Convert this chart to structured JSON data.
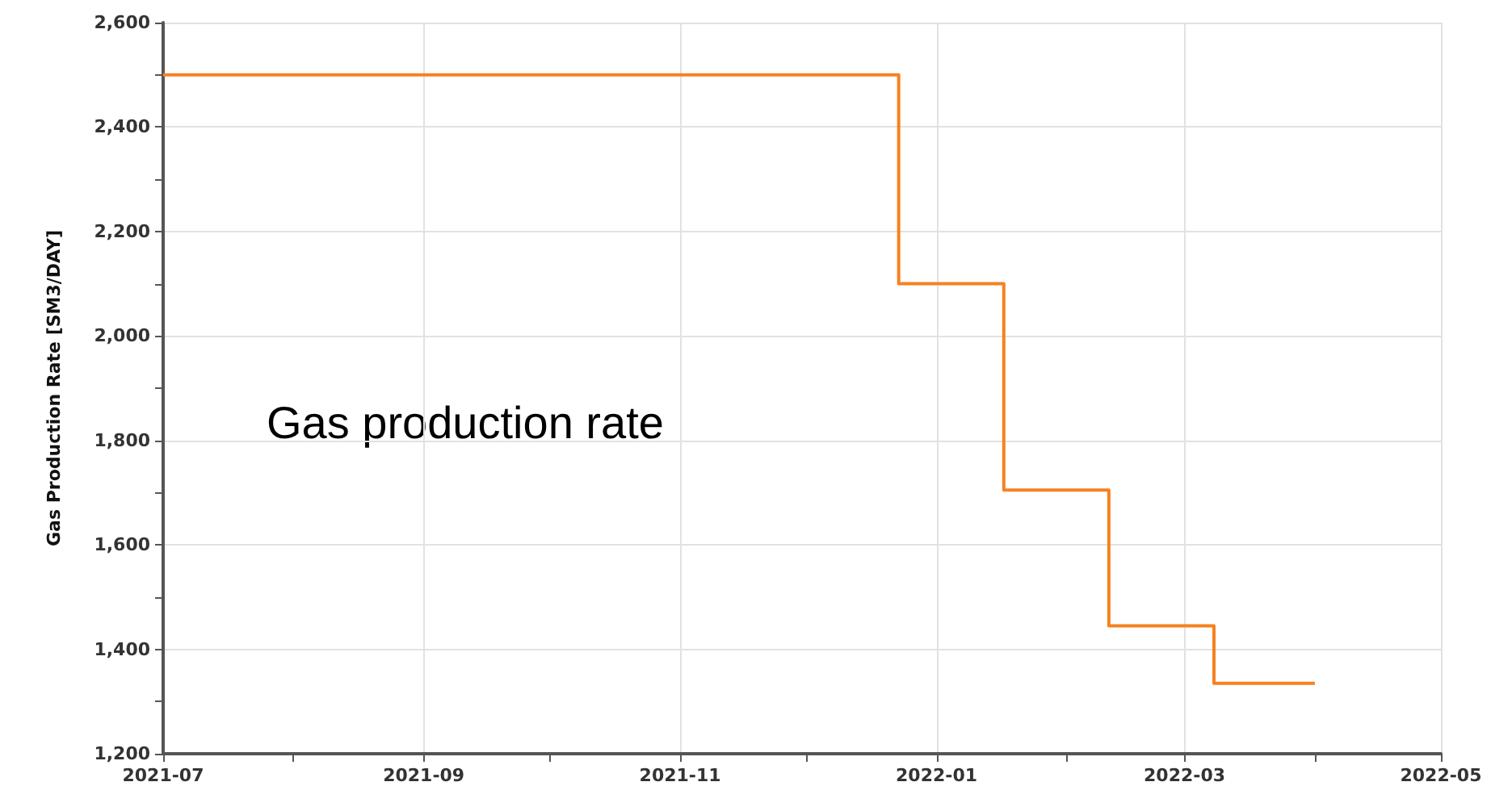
{
  "chart_data": {
    "type": "step",
    "ylabel": "Gas Production Rate [SM3/DAY]",
    "x": [
      "2021-07-01",
      "2021-12-23",
      "2022-01-17",
      "2022-02-11",
      "2022-03-08",
      "2022-04-01"
    ],
    "series": [
      {
        "color": "#f58220",
        "values": [
          2500,
          2100,
          1705,
          1445,
          1335,
          1335
        ]
      }
    ],
    "xlim": [
      "2021-07-01",
      "2022-05-01"
    ],
    "xticks": [
      {
        "value": "2021-07-01",
        "label": "2021-07"
      },
      {
        "value": "2021-08-01",
        "label": null
      },
      {
        "value": "2021-09-01",
        "label": "2021-09"
      },
      {
        "value": "2021-10-01",
        "label": null
      },
      {
        "value": "2021-11-01",
        "label": "2021-11"
      },
      {
        "value": "2021-12-01",
        "label": null
      },
      {
        "value": "2022-01-01",
        "label": "2022-01"
      },
      {
        "value": "2022-02-01",
        "label": null
      },
      {
        "value": "2022-03-01",
        "label": "2022-03"
      },
      {
        "value": "2022-04-01",
        "label": null
      },
      {
        "value": "2022-05-01",
        "label": "2022-05"
      }
    ],
    "ylim": [
      1200,
      2600
    ],
    "yticks": [
      {
        "value": 1200,
        "label": "1,200"
      },
      {
        "value": 1300,
        "label": null
      },
      {
        "value": 1400,
        "label": "1,400"
      },
      {
        "value": 1500,
        "label": null
      },
      {
        "value": 1600,
        "label": "1,600"
      },
      {
        "value": 1700,
        "label": null
      },
      {
        "value": 1800,
        "label": "1,800"
      },
      {
        "value": 1900,
        "label": null
      },
      {
        "value": 2000,
        "label": "2,000"
      },
      {
        "value": 2100,
        "label": null
      },
      {
        "value": 2200,
        "label": "2,200"
      },
      {
        "value": 2300,
        "label": null
      },
      {
        "value": 2400,
        "label": "2,400"
      },
      {
        "value": 2500,
        "label": null
      },
      {
        "value": 2600,
        "label": "2,600"
      }
    ],
    "grid": true,
    "marker": "none",
    "line_style": "solid",
    "annotations": [
      "Gas production rate"
    ]
  }
}
